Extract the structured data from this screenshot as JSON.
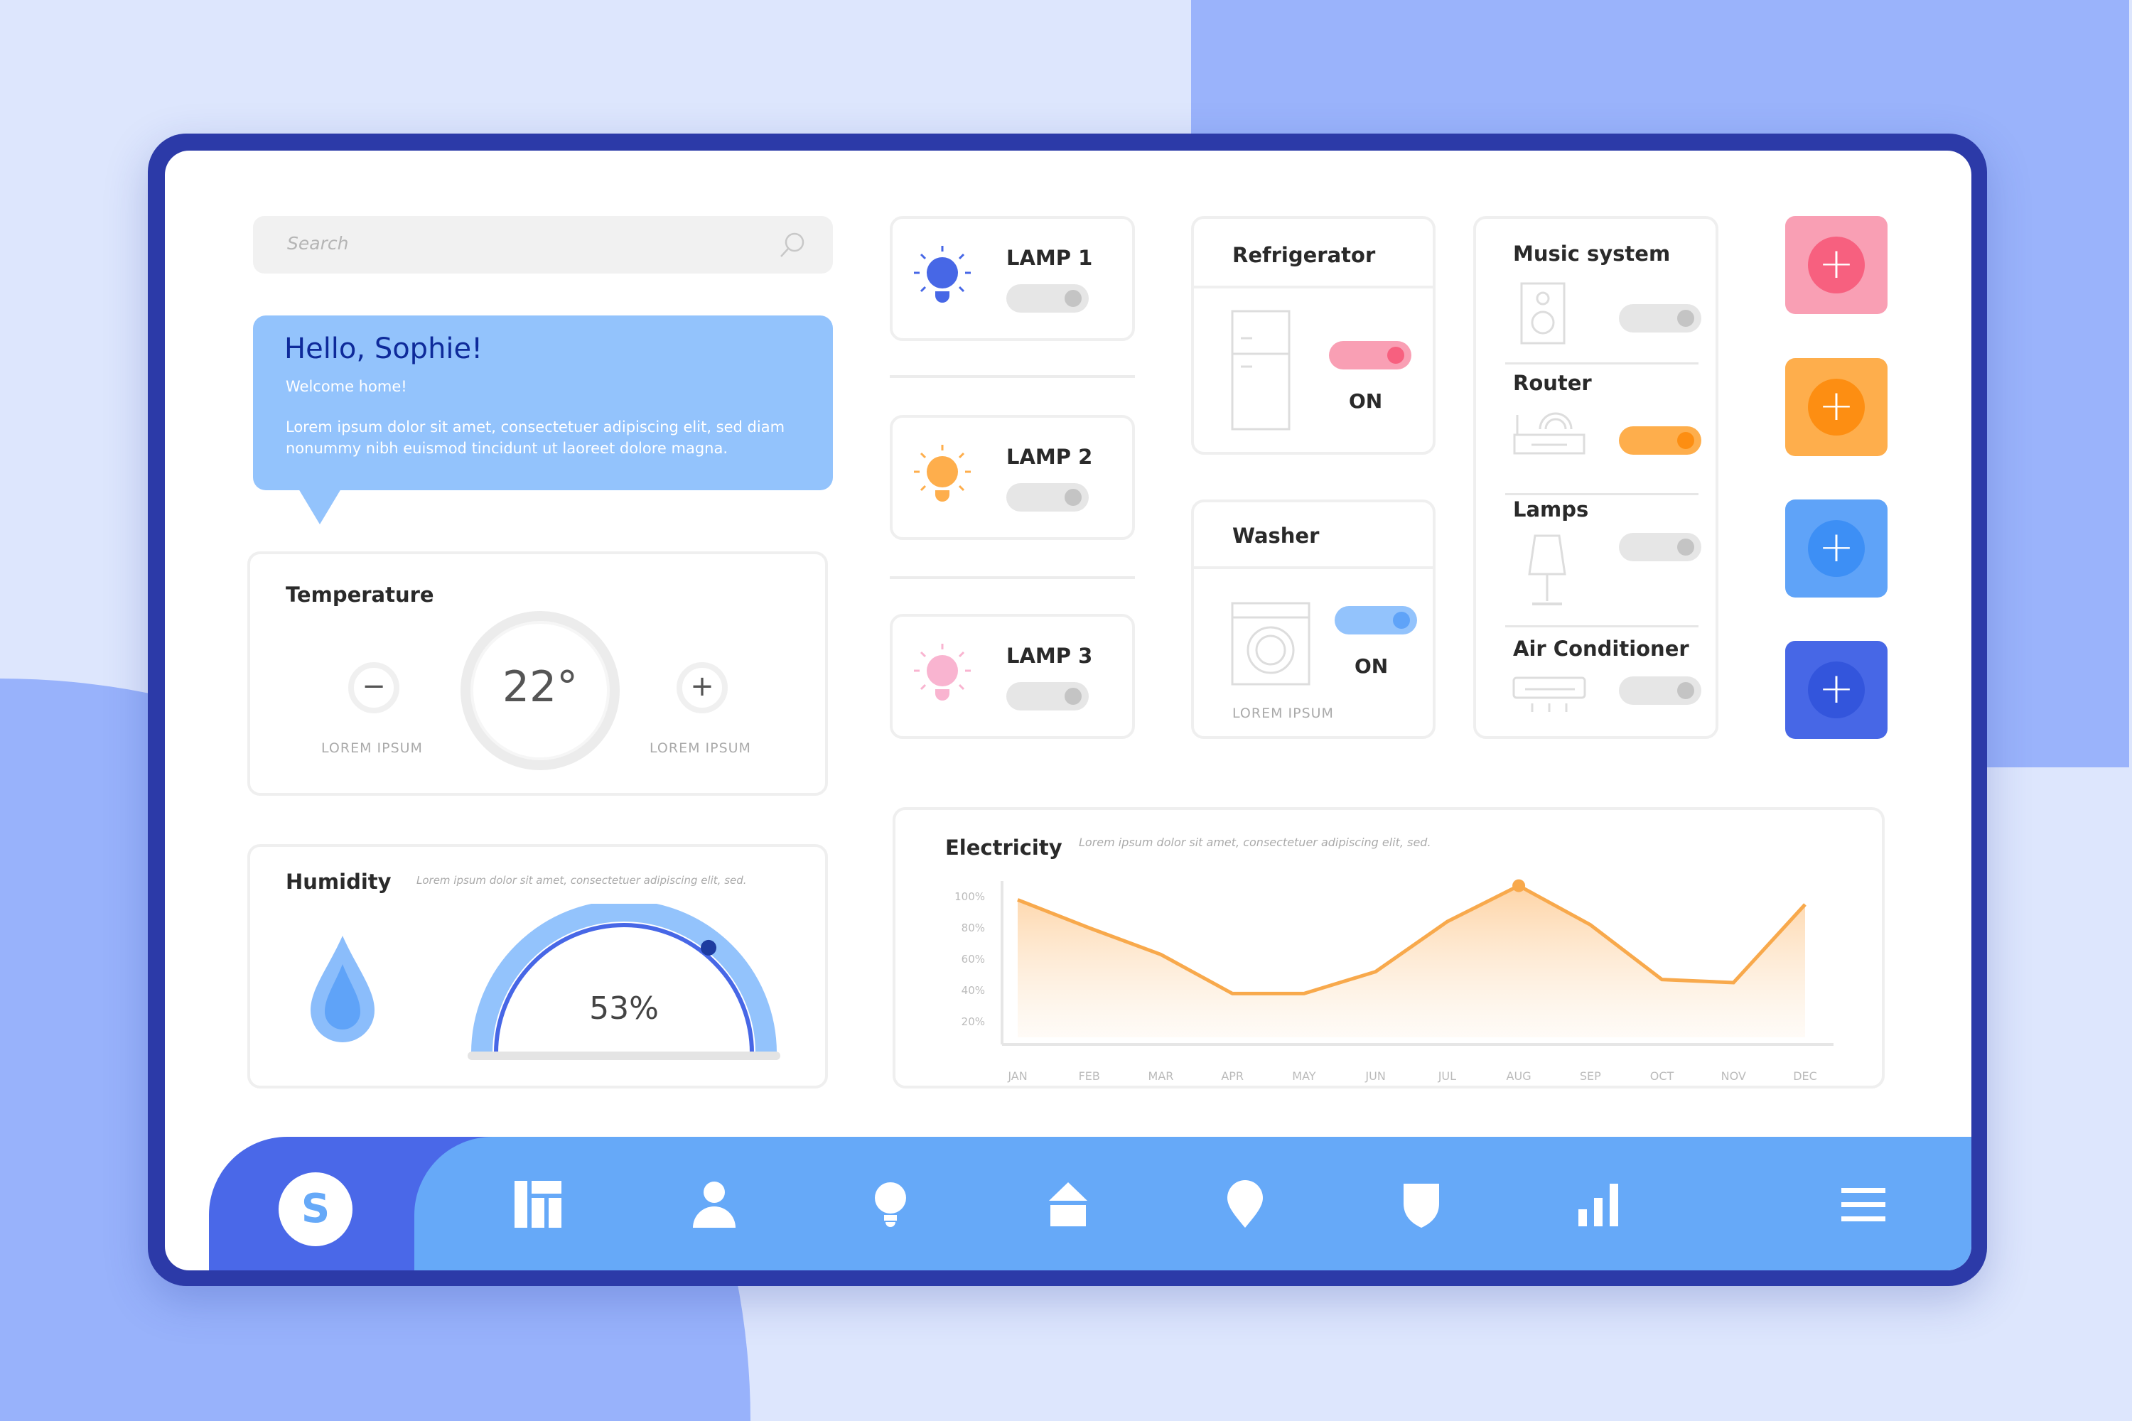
{
  "search": {
    "placeholder": "Search"
  },
  "greeting": {
    "title": "Hello, Sophie!",
    "subtitle": "Welcome home!",
    "body": "Lorem ipsum dolor sit amet, consectetuer adipiscing elit, sed diam nonummy nibh euismod tincidunt ut laoreet dolore magna."
  },
  "temperature": {
    "title": "Temperature",
    "value": "22°",
    "minus_label": "LOREM IPSUM",
    "plus_label": "LOREM IPSUM"
  },
  "humidity": {
    "title": "Humidity",
    "desc": "Lorem ipsum dolor sit amet, consectetuer adipiscing elit, sed.",
    "value": "53%",
    "level_percent": 53
  },
  "lamps": [
    {
      "label": "LAMP 1",
      "color": "#4767e6",
      "on": false
    },
    {
      "label": "LAMP 2",
      "color": "#feae4c",
      "on": false
    },
    {
      "label": "LAMP 3",
      "color": "#f9b4d0",
      "on": false
    }
  ],
  "refrigerator": {
    "title": "Refrigerator",
    "status": "ON",
    "color": "#f7607f"
  },
  "washer": {
    "title": "Washer",
    "status": "ON",
    "caption": "LOREM IPSUM",
    "color": "#5fa3f8"
  },
  "devices": [
    {
      "label": "Music system",
      "on": false
    },
    {
      "label": "Router",
      "on": true,
      "color": "#fd8e12"
    },
    {
      "label": "Lamps",
      "on": false
    },
    {
      "label": "Air Conditioner",
      "on": false
    }
  ],
  "add_buttons": [
    {
      "bg": "#f99fb4",
      "fg": "#f7607f"
    },
    {
      "bg": "#feae4c",
      "fg": "#fd8e12"
    },
    {
      "bg": "#5fa3f8",
      "fg": "#3d8ff5"
    },
    {
      "bg": "#4767e6",
      "fg": "#3355dc"
    }
  ],
  "plus_glyph": "+",
  "chart_data": {
    "type": "area",
    "title": "Electricity",
    "subtitle": "Lorem ipsum dolor sit amet, consectetuer adipiscing elit, sed.",
    "categories": [
      "JAN",
      "FEB",
      "MAR",
      "APR",
      "MAY",
      "JUN",
      "JUL",
      "AUG",
      "SEP",
      "OCT",
      "NOV",
      "DEC"
    ],
    "values": [
      98,
      80,
      63,
      38,
      38,
      52,
      84,
      107,
      82,
      47,
      45,
      95
    ],
    "yticks": [
      "100%",
      "80%",
      "60%",
      "40%",
      "20%"
    ],
    "ytick_values": [
      100,
      80,
      60,
      40,
      20
    ],
    "ylim": [
      10,
      110
    ],
    "highlight": "AUG",
    "color": "#f8a94c"
  },
  "nav": {
    "avatar": "S",
    "items": [
      "dashboard",
      "user",
      "bulb",
      "home",
      "location",
      "shield",
      "stats",
      "menu"
    ]
  }
}
